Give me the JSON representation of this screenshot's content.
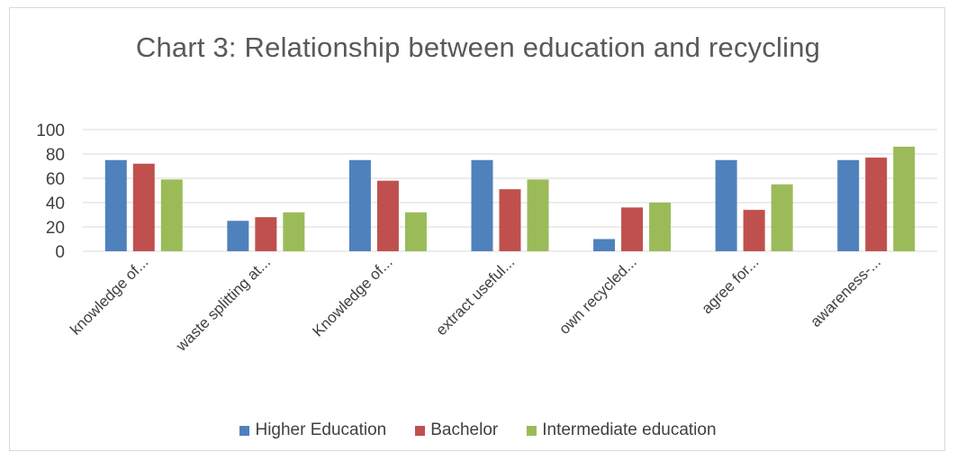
{
  "chart_data": {
    "type": "bar",
    "title": "Chart 3: Relationship between education and recycling",
    "categories": [
      "knowledge of...",
      "waste splitting at...",
      "Knowledge of...",
      "extract useful...",
      "own recycled...",
      "agree for...",
      "awareness-..."
    ],
    "series": [
      {
        "name": "Higher Education",
        "color": "#4f81bd",
        "values": [
          75,
          25,
          75,
          75,
          10,
          75,
          75
        ]
      },
      {
        "name": "Bachelor",
        "color": "#c0504d",
        "values": [
          72,
          28,
          58,
          51,
          36,
          34,
          77
        ]
      },
      {
        "name": "Intermediate education",
        "color": "#9bbb59",
        "values": [
          59,
          32,
          32,
          59,
          40,
          55,
          86
        ]
      }
    ],
    "yticks": [
      0,
      20,
      40,
      60,
      80,
      100
    ],
    "ylim": [
      0,
      100
    ],
    "grid": true,
    "legend_position": "bottom"
  }
}
